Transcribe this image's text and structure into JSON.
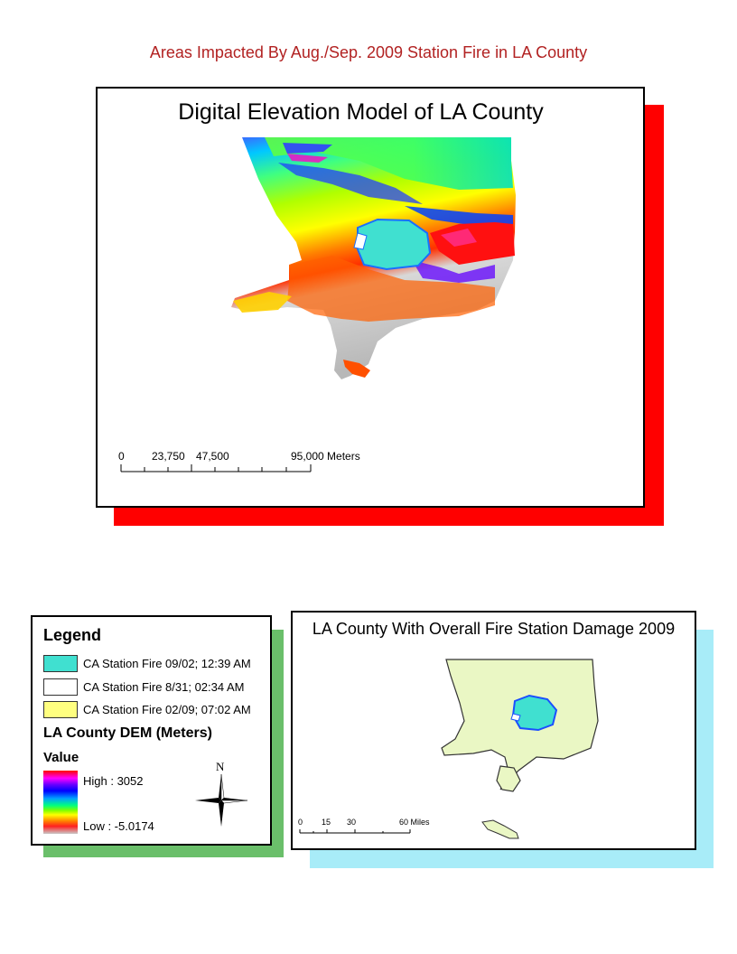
{
  "page_title": "Areas Impacted By Aug./Sep. 2009 Station Fire in LA County",
  "main_map": {
    "title": "Digital Elevation Model of LA County",
    "scale_bar": {
      "ticks": [
        "0",
        "23,750",
        "47,500",
        "95,000 Meters"
      ]
    }
  },
  "legend": {
    "title": "Legend",
    "fire_items": [
      {
        "label": "CA Station Fire 09/02; 12:39 AM",
        "color": "#40e0d0"
      },
      {
        "label": "CA Station Fire 8/31; 02:34 AM",
        "color": "#ffffff"
      },
      {
        "label": "CA Station Fire 02/09; 07:02 AM",
        "color": "#ffff80"
      }
    ],
    "dem_title": "LA County DEM (Meters)",
    "value_title": "Value",
    "high_label": "High : 3052",
    "low_label": "Low : -5.0174",
    "north_label": "N"
  },
  "inset_map": {
    "title": "LA County With Overall Fire Station Damage 2009",
    "scale_bar": {
      "ticks": [
        "0",
        "15",
        "30",
        "60 Miles"
      ]
    },
    "county_fill": "#eaf7c4",
    "fire_fill": "#40e0d0"
  },
  "colors": {
    "title_red": "#b22222",
    "shadow_red": "#ff0000",
    "shadow_green": "#6abf6a",
    "shadow_cyan": "#a8ecf8"
  }
}
